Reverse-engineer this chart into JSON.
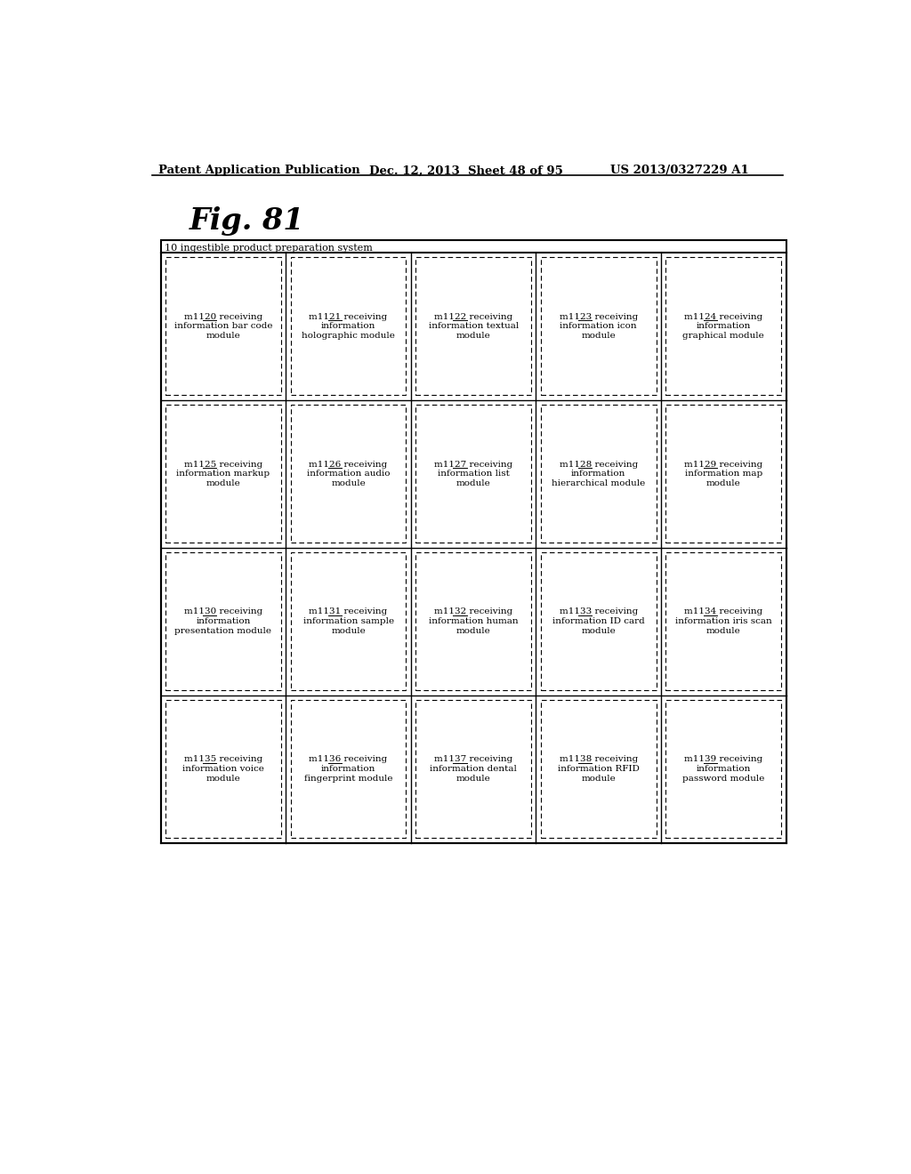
{
  "header_left": "Patent Application Publication",
  "header_mid": "Dec. 12, 2013  Sheet 48 of 95",
  "header_right": "US 2013/0327229 A1",
  "fig_label": "Fig. 81",
  "outer_label": "10 ingestible product preparation system",
  "grid_rows": 4,
  "grid_cols": 5,
  "cells": [
    [
      "m1120 receiving\ninformation bar code\nmodule",
      "m1121 receiving\ninformation\nholographic module",
      "m1122 receiving\ninformation textual\nmodule",
      "m1123 receiving\ninformation icon\nmodule",
      "m1124 receiving\ninformation\ngraphical module"
    ],
    [
      "m1125 receiving\ninformation markup\nmodule",
      "m1126 receiving\ninformation audio\nmodule",
      "m1127 receiving\ninformation list\nmodule",
      "m1128 receiving\ninformation\nhierarchical module",
      "m1129 receiving\ninformation map\nmodule"
    ],
    [
      "m1130 receiving\ninformation\npresentation module",
      "m1131 receiving\ninformation sample\nmodule",
      "m1132 receiving\ninformation human\nmodule",
      "m1133 receiving\ninformation ID card\nmodule",
      "m1134 receiving\ninformation iris scan\nmodule"
    ],
    [
      "m1135 receiving\ninformation voice\nmodule",
      "m1136 receiving\ninformation\nfingerprint module",
      "m1137 receiving\ninformation dental\nmodule",
      "m1138 receiving\ninformation RFID\nmodule",
      "m1139 receiving\ninformation\npassword module"
    ]
  ]
}
